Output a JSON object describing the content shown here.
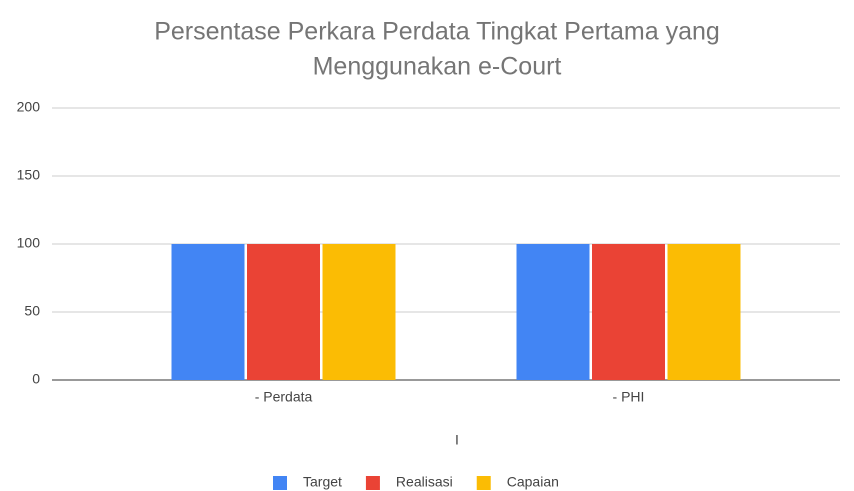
{
  "chart_data": {
    "type": "bar",
    "title": [
      "Persentase Perkara Perdata Tingkat Pertama yang",
      "Menggunakan e-Court"
    ],
    "x_label": "I",
    "categories": [
      "- Perdata",
      "- PHI"
    ],
    "series": [
      {
        "name": "Target",
        "color": "#4285f4",
        "values": [
          100,
          100
        ]
      },
      {
        "name": "Realisasi",
        "color": "#ea4335",
        "values": [
          100,
          100
        ]
      },
      {
        "name": "Capaian",
        "color": "#fbbc04",
        "values": [
          100,
          100
        ]
      }
    ],
    "ylim": [
      0,
      200
    ],
    "yticks": [
      0,
      50,
      100,
      150,
      200
    ],
    "grid": true,
    "legend": "bottom"
  }
}
